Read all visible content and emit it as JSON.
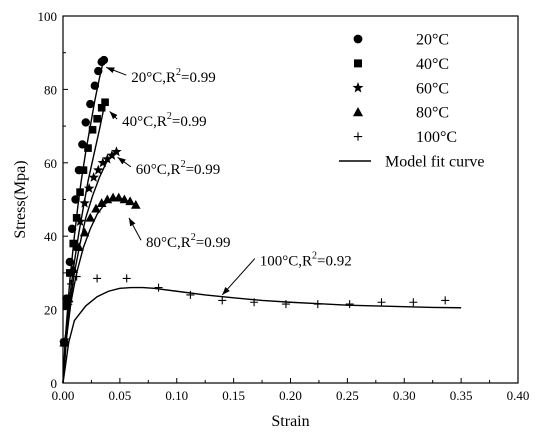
{
  "chart_data": {
    "type": "scatter",
    "xlabel": "Strain",
    "ylabel": "Stress(Mpa)",
    "xlim": [
      0.0,
      0.4
    ],
    "ylim": [
      0,
      100
    ],
    "xticks": [
      "0.00",
      "0.05",
      "0.10",
      "0.15",
      "0.20",
      "0.25",
      "0.30",
      "0.35",
      "0.40"
    ],
    "yticks": [
      "0",
      "20",
      "40",
      "60",
      "80",
      "100"
    ],
    "grid": false,
    "legend_position": "top-right",
    "legend": [
      {
        "marker": "circle",
        "label": "20°C"
      },
      {
        "marker": "square",
        "label": "40°C"
      },
      {
        "marker": "star",
        "label": "60°C"
      },
      {
        "marker": "triangle",
        "label": "80°C"
      },
      {
        "marker": "plus",
        "label": "100°C"
      },
      {
        "marker": "line",
        "label": "Model fit curve"
      }
    ],
    "series": [
      {
        "name": "20°C",
        "marker": "circle",
        "points": [
          [
            0.001,
            11
          ],
          [
            0.003,
            23
          ],
          [
            0.006,
            33
          ],
          [
            0.008,
            42
          ],
          [
            0.011,
            50
          ],
          [
            0.014,
            58
          ],
          [
            0.017,
            65
          ],
          [
            0.02,
            71
          ],
          [
            0.024,
            76
          ],
          [
            0.028,
            81
          ],
          [
            0.031,
            85
          ],
          [
            0.034,
            87.5
          ],
          [
            0.036,
            88
          ]
        ],
        "fit": [
          [
            0,
            0
          ],
          [
            0.002,
            12
          ],
          [
            0.004,
            20
          ],
          [
            0.006,
            28
          ],
          [
            0.008,
            34
          ],
          [
            0.01,
            40
          ],
          [
            0.013,
            48
          ],
          [
            0.016,
            55
          ],
          [
            0.02,
            63
          ],
          [
            0.024,
            70
          ],
          [
            0.028,
            77
          ],
          [
            0.032,
            83
          ],
          [
            0.036,
            88.5
          ]
        ]
      },
      {
        "name": "40°C",
        "marker": "square",
        "points": [
          [
            0.001,
            11
          ],
          [
            0.003,
            21
          ],
          [
            0.006,
            30
          ],
          [
            0.009,
            38
          ],
          [
            0.012,
            45
          ],
          [
            0.015,
            52
          ],
          [
            0.018,
            58
          ],
          [
            0.022,
            64
          ],
          [
            0.026,
            69
          ],
          [
            0.03,
            72
          ],
          [
            0.034,
            75
          ],
          [
            0.037,
            76.5
          ]
        ],
        "fit": [
          [
            0,
            0
          ],
          [
            0.002,
            11
          ],
          [
            0.004,
            18
          ],
          [
            0.007,
            26
          ],
          [
            0.01,
            33
          ],
          [
            0.014,
            41
          ],
          [
            0.018,
            48
          ],
          [
            0.022,
            55
          ],
          [
            0.027,
            62
          ],
          [
            0.032,
            69
          ],
          [
            0.037,
            76.5
          ]
        ]
      },
      {
        "name": "60°C",
        "marker": "star",
        "points": [
          [
            0.001,
            11
          ],
          [
            0.004,
            21
          ],
          [
            0.007,
            30
          ],
          [
            0.011,
            37
          ],
          [
            0.015,
            44
          ],
          [
            0.019,
            49
          ],
          [
            0.023,
            53
          ],
          [
            0.027,
            56
          ],
          [
            0.031,
            58
          ],
          [
            0.035,
            60
          ],
          [
            0.039,
            61
          ],
          [
            0.043,
            62
          ],
          [
            0.047,
            63
          ]
        ],
        "fit": [
          [
            0,
            0
          ],
          [
            0.003,
            12
          ],
          [
            0.006,
            21
          ],
          [
            0.01,
            30
          ],
          [
            0.015,
            38
          ],
          [
            0.02,
            45
          ],
          [
            0.026,
            51
          ],
          [
            0.032,
            56
          ],
          [
            0.038,
            60
          ],
          [
            0.044,
            62.5
          ],
          [
            0.048,
            63.5
          ]
        ]
      },
      {
        "name": "80°C",
        "marker": "triangle",
        "points": [
          [
            0.001,
            11
          ],
          [
            0.005,
            23
          ],
          [
            0.009,
            31
          ],
          [
            0.014,
            37
          ],
          [
            0.019,
            41
          ],
          [
            0.024,
            45
          ],
          [
            0.029,
            47.5
          ],
          [
            0.034,
            49
          ],
          [
            0.039,
            50
          ],
          [
            0.044,
            50.5
          ],
          [
            0.049,
            50.5
          ],
          [
            0.054,
            50
          ],
          [
            0.059,
            49.5
          ],
          [
            0.064,
            48.5
          ]
        ],
        "fit": [
          [
            0,
            0
          ],
          [
            0.003,
            12
          ],
          [
            0.007,
            22
          ],
          [
            0.012,
            30
          ],
          [
            0.018,
            37
          ],
          [
            0.024,
            42
          ],
          [
            0.03,
            46
          ],
          [
            0.036,
            48.5
          ],
          [
            0.042,
            50
          ],
          [
            0.048,
            50.5
          ],
          [
            0.054,
            50
          ],
          [
            0.06,
            49
          ],
          [
            0.066,
            48
          ]
        ]
      },
      {
        "name": "100°C",
        "marker": "plus",
        "points": [
          [
            0.002,
            12
          ],
          [
            0.004,
            22
          ],
          [
            0.007,
            27
          ],
          [
            0.012,
            29
          ],
          [
            0.03,
            28.5
          ],
          [
            0.056,
            28.5
          ],
          [
            0.084,
            26
          ],
          [
            0.112,
            24
          ],
          [
            0.14,
            22.5
          ],
          [
            0.168,
            22
          ],
          [
            0.196,
            21.5
          ],
          [
            0.224,
            21.5
          ],
          [
            0.252,
            21.5
          ],
          [
            0.28,
            22
          ],
          [
            0.308,
            22
          ],
          [
            0.336,
            22.5
          ]
        ],
        "fit": [
          [
            0,
            0
          ],
          [
            0.005,
            11
          ],
          [
            0.01,
            17
          ],
          [
            0.02,
            21
          ],
          [
            0.03,
            23.5
          ],
          [
            0.04,
            25
          ],
          [
            0.05,
            25.8
          ],
          [
            0.06,
            26
          ],
          [
            0.07,
            26
          ],
          [
            0.08,
            25.8
          ],
          [
            0.1,
            25
          ],
          [
            0.125,
            24
          ],
          [
            0.15,
            23.2
          ],
          [
            0.175,
            22.5
          ],
          [
            0.2,
            22
          ],
          [
            0.225,
            21.6
          ],
          [
            0.25,
            21.2
          ],
          [
            0.275,
            21
          ],
          [
            0.3,
            20.8
          ],
          [
            0.325,
            20.6
          ],
          [
            0.35,
            20.5
          ]
        ]
      }
    ],
    "annotations": [
      {
        "temp": "20°C,R",
        "exp": "2",
        "value": "=0.99",
        "text_x": 0.06,
        "text_y": 82,
        "arrow_to": [
          0.038,
          86
        ]
      },
      {
        "temp": "40°C,R",
        "exp": "2",
        "value": "=0.99",
        "text_x": 0.052,
        "text_y": 70,
        "arrow_to": [
          0.041,
          74
        ]
      },
      {
        "temp": "60°C,R",
        "exp": "2",
        "value": "=0.99",
        "text_x": 0.064,
        "text_y": 57,
        "arrow_to": [
          0.048,
          61.5
        ]
      },
      {
        "temp": "80°C,R",
        "exp": "2",
        "value": "=0.99",
        "text_x": 0.073,
        "text_y": 37,
        "arrow_to": [
          0.058,
          45
        ]
      },
      {
        "temp": "100°C,R",
        "exp": "2",
        "value": "=0.92",
        "text_x": 0.173,
        "text_y": 32,
        "arrow_to": [
          0.14,
          24
        ]
      }
    ]
  }
}
